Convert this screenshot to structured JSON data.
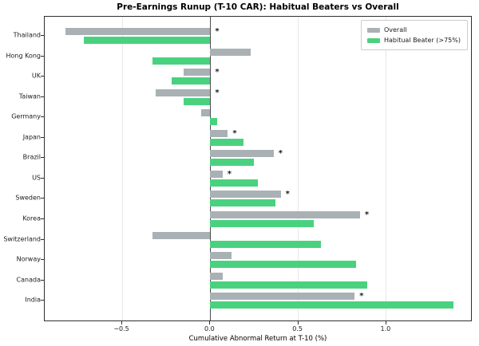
{
  "chart_data": {
    "type": "bar",
    "orientation": "horizontal",
    "title": "Pre-Earnings Runup (T-10 CAR): Habitual Beaters vs Overall",
    "xlabel": "Cumulative Abnormal Return at T-10 (%)",
    "ylabel": "",
    "xlim": [
      -0.94,
      1.49
    ],
    "xticks": [
      -0.5,
      0.0,
      0.5,
      1.0
    ],
    "xtick_labels": [
      "−0.5",
      "0.0",
      "0.5",
      "1.0"
    ],
    "grid": "vertical light gridlines at ticks, dark vertical zero line",
    "legend_position": "upper right",
    "categories": [
      "Thailand",
      "Hong Kong",
      "UK",
      "Taiwan",
      "Germany",
      "Japan",
      "Brazil",
      "US",
      "Sweden",
      "Korea",
      "Switzerland",
      "Norway",
      "Canada",
      "India"
    ],
    "series": [
      {
        "name": "Overall",
        "color": "#a9b1b5",
        "values": [
          -0.82,
          0.23,
          -0.15,
          -0.31,
          -0.05,
          0.1,
          0.36,
          0.07,
          0.4,
          0.85,
          -0.33,
          0.12,
          0.07,
          0.82
        ]
      },
      {
        "name": "Habitual Beater (>75%)",
        "color": "#4ad180",
        "values": [
          -0.72,
          -0.33,
          -0.22,
          -0.15,
          0.04,
          0.19,
          0.25,
          0.27,
          0.37,
          0.59,
          0.63,
          0.83,
          0.89,
          1.38
        ]
      }
    ],
    "significance_marker": "*",
    "significant": [
      true,
      false,
      true,
      true,
      false,
      true,
      true,
      true,
      true,
      true,
      false,
      false,
      false,
      true
    ]
  },
  "colors": {
    "overall_bar": "#a9b1b5",
    "habitual_bar": "#4ad180",
    "zero_line": "#4d4d4d",
    "gridline": "#e7e7e7",
    "frame": "#2f2f2f"
  }
}
